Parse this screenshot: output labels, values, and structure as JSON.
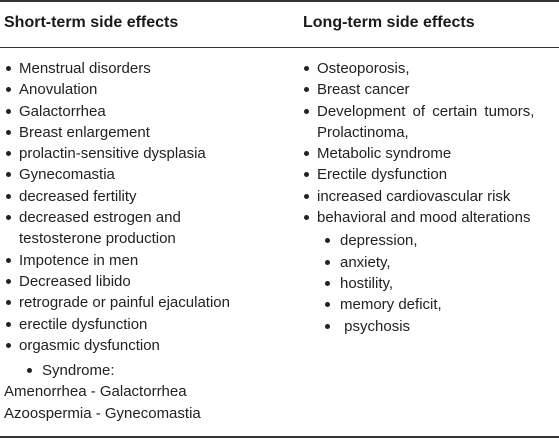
{
  "headers": {
    "short_term": "Short-term side effects",
    "long_term": "Long-term side effects"
  },
  "short_term_items": [
    "Menstrual disorders",
    "Anovulation",
    "Galactorrhea",
    "Breast enlargement",
    "prolactin-sensitive dysplasia",
    "Gynecomastia",
    "decreased fertility",
    "decreased estrogen and testosterone production",
    "Impotence in men",
    "Decreased libido",
    "retrograde or painful ejaculation",
    "erectile dysfunction",
    "orgasmic dysfunction"
  ],
  "syndrome": {
    "label": "Syndrome:",
    "lines": [
      "Amenorrhea - Galactorrhea",
      "Azoospermia - Gynecomastia"
    ]
  },
  "long_term_items": [
    "Osteoporosis,",
    "Breast cancer",
    "Development of certain tumors, Prolactinoma,",
    "Metabolic syndrome",
    "Erectile dysfunction",
    "increased cardiovascular risk",
    "behavioral and mood alterations"
  ],
  "behavioral_subitems": [
    "depression,",
    "anxiety,",
    "hostility,",
    "memory deficit,",
    " psychosis"
  ]
}
